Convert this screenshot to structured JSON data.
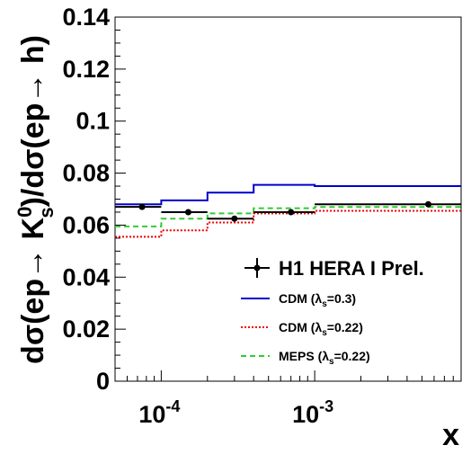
{
  "chart_data": {
    "type": "line",
    "title": "",
    "xlabel": "x",
    "ylabel": "dσ(ep→ K⁰s)/dσ(ep→ h)",
    "ylabel_parts": {
      "pre": "dσ(ep→ K",
      "sup": "0",
      "sub": "s",
      "post": ")/dσ(ep→ h)"
    },
    "x_scale": "log",
    "xlim": [
      5e-05,
      0.009
    ],
    "ylim": [
      0,
      0.14
    ],
    "y_ticks": [
      "0",
      "0.02",
      "0.04",
      "0.06",
      "0.08",
      "0.1",
      "0.12",
      "0.14"
    ],
    "y_tick_values": [
      0,
      0.02,
      0.04,
      0.06,
      0.08,
      0.1,
      0.12,
      0.14
    ],
    "x_ticks": [
      {
        "value": 0.0001,
        "base": "10",
        "exp": "-4"
      },
      {
        "value": 0.001,
        "base": "10",
        "exp": "-3"
      }
    ],
    "bin_edges": [
      5e-05,
      0.0001,
      0.0002,
      0.0004,
      0.001,
      0.009
    ],
    "grid": false,
    "legend_position": "bottom-right",
    "series": [
      {
        "name": "H1 HERA I Prel.",
        "kind": "data",
        "color": "#000000",
        "points": [
          {
            "x": 7.5e-05,
            "y": 0.067,
            "xlo": 5e-05,
            "xhi": 0.0001
          },
          {
            "x": 0.00015,
            "y": 0.065,
            "xlo": 0.0001,
            "xhi": 0.0002
          },
          {
            "x": 0.0003,
            "y": 0.0625,
            "xlo": 0.0002,
            "xhi": 0.0004
          },
          {
            "x": 0.0007,
            "y": 0.065,
            "xlo": 0.0004,
            "xhi": 0.001
          },
          {
            "x": 0.0055,
            "y": 0.068,
            "xlo": 0.001,
            "xhi": 0.009
          }
        ]
      },
      {
        "name": "CDM (λs=0.3)",
        "name_parts": {
          "pre": "CDM (λ",
          "sub": "s",
          "post": "=0.3)"
        },
        "kind": "model",
        "color": "#0000cc",
        "dash": "",
        "values": [
          0.068,
          0.0695,
          0.0725,
          0.0755,
          0.075
        ]
      },
      {
        "name": "CDM (λs=0.22)",
        "name_parts": {
          "pre": "CDM (λ",
          "sub": "s",
          "post": "=0.22)"
        },
        "kind": "model",
        "color": "#ee0000",
        "dash": "2,2",
        "values": [
          0.0555,
          0.058,
          0.061,
          0.0645,
          0.0655
        ]
      },
      {
        "name": "MEPS (λs=0.22)",
        "name_parts": {
          "pre": "MEPS (λ",
          "sub": "s",
          "post": "=0.22)"
        },
        "kind": "model",
        "color": "#33cc33",
        "dash": "6,4",
        "values": [
          0.0595,
          0.0625,
          0.0645,
          0.0665,
          0.067
        ]
      }
    ]
  }
}
